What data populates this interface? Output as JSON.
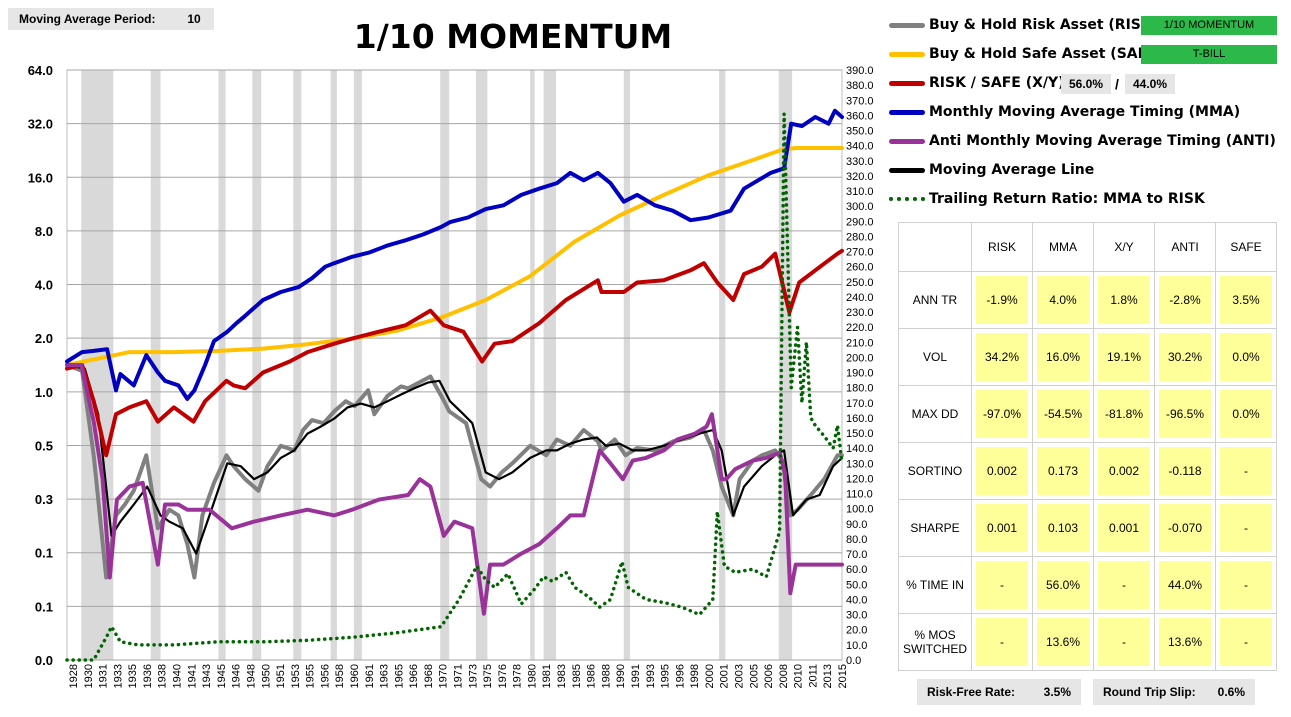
{
  "moving_average": {
    "label": "Moving Average Period:",
    "value": "10"
  },
  "chart_data": {
    "type": "line",
    "title": "1/10 MOMENTUM",
    "left_axis_ticks": [
      "64.0",
      "32.0",
      "16.0",
      "8.0",
      "4.0",
      "2.0",
      "1.0",
      "0.5",
      "0.3",
      "0.1",
      "0.1",
      "0.0"
    ],
    "right_axis_ticks": [
      "390.0",
      "380.0",
      "370.0",
      "360.0",
      "350.0",
      "340.0",
      "330.0",
      "320.0",
      "310.0",
      "300.0",
      "290.0",
      "280.0",
      "270.0",
      "260.0",
      "250.0",
      "240.0",
      "230.0",
      "220.0",
      "210.0",
      "200.0",
      "190.0",
      "180.0",
      "170.0",
      "160.0",
      "150.0",
      "140.0",
      "130.0",
      "120.0",
      "110.0",
      "100.0",
      "90.0",
      "80.0",
      "70.0",
      "60.0",
      "50.0",
      "40.0",
      "30.0",
      "20.0",
      "10.0",
      "0.0"
    ],
    "right_axis_range": [
      0,
      390
    ],
    "x_years": [
      "1928",
      "1930",
      "1931",
      "1933",
      "1935",
      "1936",
      "1938",
      "1940",
      "1941",
      "1943",
      "1945",
      "1946",
      "1948",
      "1950",
      "1951",
      "1953",
      "1955",
      "1956",
      "1958",
      "1960",
      "1961",
      "1963",
      "1965",
      "1966",
      "1968",
      "1970",
      "1971",
      "1973",
      "1975",
      "1976",
      "1978",
      "1980",
      "1981",
      "1983",
      "1985",
      "1986",
      "1988",
      "1990",
      "1991",
      "1993",
      "1995",
      "1996",
      "1998",
      "2000",
      "2001",
      "2003",
      "2005",
      "2006",
      "2008",
      "2010",
      "2011",
      "2013",
      "2015"
    ],
    "shaded_periods": [
      [
        1929.6,
        1933.2
      ],
      [
        1937.4,
        1938.5
      ],
      [
        1945.0,
        1945.8
      ],
      [
        1948.8,
        1949.8
      ],
      [
        1953.4,
        1954.3
      ],
      [
        1957.6,
        1958.3
      ],
      [
        1960.2,
        1961.1
      ],
      [
        1969.9,
        1970.9
      ],
      [
        1973.9,
        1975.2
      ],
      [
        1980.0,
        1980.5
      ],
      [
        1981.5,
        1982.9
      ],
      [
        1990.5,
        1991.2
      ],
      [
        2001.2,
        2001.9
      ],
      [
        2007.9,
        2009.4
      ]
    ],
    "grid": true,
    "series": [
      {
        "name": "Buy & Hold Risk Asset (RISK)",
        "color": "#808080",
        "key": "risk_bh",
        "x": [
          1928,
          1929.7,
          1931,
          1932.4,
          1933.5,
          1934.5,
          1935.5,
          1936.9,
          1938.2,
          1939.5,
          1940.5,
          1941.5,
          1942.3,
          1943.2,
          1944.5,
          1945.9,
          1946.7,
          1948,
          1949.5,
          1950.5,
          1952,
          1953.5,
          1954.5,
          1955.5,
          1956.8,
          1958,
          1959.3,
          1960.3,
          1961.8,
          1962.5,
          1964,
          1965.5,
          1966.3,
          1967.5,
          1968.8,
          1970.2,
          1970.9,
          1972.8,
          1974.5,
          1975.5,
          1976.8,
          1978,
          1980,
          1981.8,
          1983,
          1984.5,
          1986,
          1987.6,
          1988,
          1989.5,
          1990.7,
          1992,
          1994,
          1996,
          1998,
          1999.5,
          2000.5,
          2001.5,
          2002.8,
          2003.5,
          2005,
          2006,
          2007.5,
          2008.3,
          2009.2,
          2010,
          2011.5,
          2013,
          2014.5,
          2015
        ],
        "y": [
          1.0,
          0.92,
          0.28,
          0.05,
          0.12,
          0.14,
          0.17,
          0.28,
          0.1,
          0.13,
          0.12,
          0.08,
          0.05,
          0.12,
          0.19,
          0.28,
          0.24,
          0.2,
          0.17,
          0.24,
          0.32,
          0.3,
          0.4,
          0.46,
          0.44,
          0.52,
          0.6,
          0.56,
          0.7,
          0.5,
          0.65,
          0.74,
          0.72,
          0.78,
          0.85,
          0.62,
          0.52,
          0.44,
          0.2,
          0.18,
          0.22,
          0.25,
          0.32,
          0.28,
          0.35,
          0.32,
          0.4,
          0.34,
          0.3,
          0.35,
          0.28,
          0.31,
          0.3,
          0.34,
          0.36,
          0.4,
          0.3,
          0.18,
          0.12,
          0.2,
          0.26,
          0.28,
          0.3,
          0.26,
          0.12,
          0.13,
          0.16,
          0.2,
          0.28,
          0.28
        ]
      },
      {
        "name": "Buy & Hold Safe Asset (SAFE)",
        "color": "#ffc000",
        "key": "safe_bh",
        "x": [
          1928,
          1935,
          1940,
          1945,
          1950,
          1955,
          1960,
          1965,
          1970,
          1975,
          1980,
          1985,
          1990,
          1995,
          2000,
          2005,
          2008.5,
          2010,
          2015
        ],
        "y": [
          1.0,
          1.2,
          1.2,
          1.22,
          1.26,
          1.34,
          1.45,
          1.62,
          1.95,
          2.5,
          3.5,
          5.7,
          8.2,
          11,
          14.5,
          18,
          21,
          21.3,
          21.3
        ]
      },
      {
        "name": "RISK / SAFE (X/Y)",
        "color": "#c00000",
        "key": "xy",
        "x": [
          1928,
          1929.7,
          1931,
          1932.4,
          1933.5,
          1935,
          1936.9,
          1938.2,
          1940,
          1942.2,
          1943.5,
          1945.9,
          1946.7,
          1948,
          1950,
          1953,
          1955,
          1958,
          1960,
          1963,
          1966,
          1968.8,
          1970.3,
          1972.5,
          1974.6,
          1976,
          1978,
          1981,
          1984,
          1987.6,
          1988,
          1990.5,
          1992,
          1995,
          1998,
          1999.5,
          2001,
          2002.8,
          2004,
          2006,
          2007.5,
          2009.1,
          2010.2,
          2012,
          2014.5,
          2015
        ],
        "y": [
          0.95,
          1.0,
          0.6,
          0.28,
          0.5,
          0.55,
          0.6,
          0.45,
          0.55,
          0.45,
          0.6,
          0.8,
          0.75,
          0.72,
          0.9,
          1.05,
          1.2,
          1.35,
          1.45,
          1.6,
          1.75,
          2.15,
          1.75,
          1.6,
          1.05,
          1.35,
          1.4,
          1.8,
          2.5,
          3.3,
          2.8,
          2.8,
          3.2,
          3.3,
          3.8,
          4.2,
          3.2,
          2.5,
          3.6,
          4.0,
          4.8,
          2.1,
          3.2,
          3.8,
          4.8,
          5.0
        ]
      },
      {
        "name": "Monthly Moving Average Timing (MMA)",
        "color": "#0000c0",
        "key": "mma",
        "x": [
          1928,
          1929.7,
          1931,
          1932.5,
          1933.5,
          1934,
          1935.5,
          1936.9,
          1938.2,
          1939,
          1940.5,
          1941.5,
          1942.3,
          1943.5,
          1944.5,
          1946,
          1947,
          1948,
          1950,
          1952,
          1954,
          1955.5,
          1957,
          1958,
          1960,
          1962,
          1964,
          1966,
          1968,
          1970,
          1971,
          1973,
          1975,
          1977,
          1979,
          1981,
          1983,
          1984.5,
          1986,
          1987.6,
          1989,
          1990.5,
          1992,
          1994,
          1996,
          1998,
          2000,
          2002.5,
          2004,
          2007,
          2008.5,
          2009.3,
          2010.5,
          2012,
          2013.5,
          2014.2,
          2015
        ],
        "y": [
          1.05,
          1.2,
          1.22,
          1.25,
          0.7,
          0.88,
          0.75,
          1.15,
          0.9,
          0.8,
          0.75,
          0.62,
          0.7,
          1.0,
          1.4,
          1.6,
          1.8,
          2.0,
          2.5,
          2.8,
          3.0,
          3.4,
          4.0,
          4.2,
          4.6,
          4.9,
          5.4,
          5.8,
          6.3,
          7.0,
          7.5,
          8.0,
          9.0,
          9.5,
          11,
          12,
          13,
          15,
          13.5,
          15,
          13,
          10,
          11,
          9.5,
          8.8,
          7.7,
          8.0,
          8.8,
          12,
          15,
          16,
          30,
          29,
          33,
          30,
          36,
          33
        ]
      },
      {
        "name": "Anti Monthly Moving Average Timing (ANTI)",
        "color": "#993399",
        "key": "anti",
        "x": [
          1928,
          1929.6,
          1931,
          1932,
          1932.8,
          1933.6,
          1935,
          1936.5,
          1938.2,
          1939,
          1940.5,
          1941.5,
          1944,
          1946.5,
          1949,
          1952,
          1955,
          1958,
          1960,
          1963,
          1966.3,
          1967.6,
          1968.8,
          1970.3,
          1971.5,
          1973.5,
          1974.8,
          1975.5,
          1977,
          1979,
          1981,
          1983,
          1984.5,
          1986,
          1987.8,
          1989,
          1990.4,
          1991.5,
          1993,
          1995,
          1996.5,
          1998.5,
          1999.8,
          2000.4,
          2001.5,
          2002,
          2003,
          2005,
          2006.5,
          2008,
          2008.6,
          2009.2,
          2009.8,
          2010.5,
          2011.5,
          2013,
          2014.5,
          2015
        ],
        "y": [
          1.0,
          1.0,
          0.45,
          0.2,
          0.05,
          0.15,
          0.18,
          0.19,
          0.06,
          0.14,
          0.14,
          0.13,
          0.13,
          0.1,
          0.11,
          0.12,
          0.13,
          0.12,
          0.13,
          0.15,
          0.16,
          0.2,
          0.18,
          0.09,
          0.11,
          0.1,
          0.03,
          0.06,
          0.06,
          0.07,
          0.08,
          0.1,
          0.12,
          0.12,
          0.3,
          0.25,
          0.2,
          0.26,
          0.27,
          0.3,
          0.35,
          0.38,
          0.42,
          0.5,
          0.2,
          0.2,
          0.23,
          0.26,
          0.27,
          0.29,
          0.22,
          0.04,
          0.06,
          0.06,
          0.06,
          0.06,
          0.06,
          0.06
        ]
      },
      {
        "name": "Moving Average Line",
        "color": "#000000",
        "key": "ma",
        "x": [
          1928,
          1930,
          1931.5,
          1933,
          1934,
          1935.5,
          1937,
          1938.5,
          1939.5,
          1941,
          1942.5,
          1944,
          1946,
          1947.5,
          1949,
          1950.5,
          1952,
          1953.5,
          1955,
          1956.5,
          1958,
          1959.5,
          1961,
          1962.5,
          1964,
          1965.5,
          1967,
          1968.5,
          1969.8,
          1971,
          1972.5,
          1973.5,
          1975,
          1976.5,
          1978,
          1980,
          1981.8,
          1983,
          1984.5,
          1986,
          1987.5,
          1988.5,
          1990,
          1991.5,
          1993,
          1995,
          1997,
          1999,
          2000.5,
          2001.5,
          2002.8,
          2004,
          2006,
          2007.5,
          2008.5,
          2009.5,
          2011,
          2012.5,
          2014,
          2015
        ],
        "y": [
          1.0,
          0.95,
          0.5,
          0.09,
          0.11,
          0.14,
          0.18,
          0.12,
          0.11,
          0.1,
          0.07,
          0.12,
          0.25,
          0.24,
          0.2,
          0.22,
          0.27,
          0.3,
          0.38,
          0.42,
          0.47,
          0.55,
          0.58,
          0.55,
          0.6,
          0.66,
          0.72,
          0.78,
          0.8,
          0.6,
          0.5,
          0.44,
          0.22,
          0.2,
          0.22,
          0.27,
          0.3,
          0.3,
          0.33,
          0.35,
          0.36,
          0.32,
          0.33,
          0.3,
          0.3,
          0.32,
          0.35,
          0.38,
          0.4,
          0.3,
          0.12,
          0.18,
          0.24,
          0.28,
          0.3,
          0.12,
          0.15,
          0.16,
          0.24,
          0.27
        ]
      },
      {
        "name": "Trailing Return Ratio: MMA to RISK",
        "color": "#006400",
        "key": "ratio",
        "x": [
          1928,
          1931,
          1932.5,
          1933,
          1934,
          1936,
          1940,
          1945,
          1950,
          1955,
          1960,
          1965,
          1970,
          1972,
          1974,
          1975,
          1976,
          1977.5,
          1979,
          1980.5,
          1981.5,
          1982.5,
          1984,
          1985,
          1986.5,
          1987.8,
          1989,
          1990.3,
          1991,
          1993,
          1995,
          1997,
          1999,
          2000.5,
          2001,
          2001.8,
          2003,
          2005,
          2006.5,
          2008,
          2008.5,
          2009.3,
          2010,
          2010.5,
          2011,
          2011.5,
          2012,
          2013,
          2014,
          2014.5,
          2015
        ],
        "y": [
          0,
          0,
          16,
          22,
          12,
          10,
          10,
          12,
          12,
          13,
          15,
          18,
          22,
          40,
          62,
          53,
          48,
          57,
          37,
          47,
          55,
          52,
          58,
          48,
          42,
          35,
          40,
          65,
          48,
          40,
          38,
          35,
          30,
          40,
          98,
          62,
          58,
          60,
          55,
          85,
          361,
          180,
          220,
          170,
          210,
          160,
          155,
          148,
          140,
          155,
          130
        ]
      }
    ]
  },
  "legend": [
    {
      "label": "Buy & Hold Risk Asset (RISK):",
      "color": "#808080",
      "value": "1/10 MOMENTUM"
    },
    {
      "label": "Buy & Hold Safe Asset (SAFE):",
      "color": "#ffc000",
      "value": "T-BILL"
    },
    {
      "label": "RISK / SAFE (X/Y):",
      "color": "#c00000",
      "pct1": "56.0%",
      "sep": "/",
      "pct2": "44.0%"
    },
    {
      "label": "Monthly Moving Average Timing (MMA)",
      "color": "#0000c0"
    },
    {
      "label": "Anti Monthly Moving Average Timing (ANTI)",
      "color": "#993399"
    },
    {
      "label": "Moving Average Line",
      "color": "#000000"
    },
    {
      "label": "Trailing Return Ratio: MMA to RISK",
      "color": "#006400"
    }
  ],
  "stats": {
    "headers": [
      "RISK",
      "MMA",
      "X/Y",
      "ANTI",
      "SAFE"
    ],
    "rows": [
      {
        "label": "ANN TR",
        "values": [
          "-1.9%",
          "4.0%",
          "1.8%",
          "-2.8%",
          "3.5%"
        ]
      },
      {
        "label": "VOL",
        "values": [
          "34.2%",
          "16.0%",
          "19.1%",
          "30.2%",
          "0.0%"
        ]
      },
      {
        "label": "MAX DD",
        "values": [
          "-97.0%",
          "-54.5%",
          "-81.8%",
          "-96.5%",
          "0.0%"
        ]
      },
      {
        "label": "SORTINO",
        "values": [
          "0.002",
          "0.173",
          "0.002",
          "-0.118",
          "-"
        ]
      },
      {
        "label": "SHARPE",
        "values": [
          "0.001",
          "0.103",
          "0.001",
          "-0.070",
          "-"
        ]
      },
      {
        "label": "% TIME IN",
        "values": [
          "-",
          "56.0%",
          "-",
          "44.0%",
          "-"
        ]
      },
      {
        "label": "% MOS SWITCHED",
        "values": [
          "-",
          "13.6%",
          "-",
          "13.6%",
          "-"
        ]
      }
    ]
  },
  "footer": {
    "risk_free_label": "Risk-Free Rate:",
    "risk_free_value": "3.5%",
    "slip_label": "Round Trip Slip:",
    "slip_value": "0.6%"
  }
}
